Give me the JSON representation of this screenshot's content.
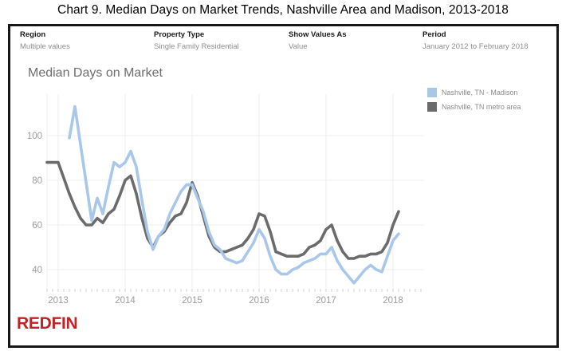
{
  "page_title": "Chart 9. Median Days on Market Trends, Nashville Area and Madison, 2013-2018",
  "filters": [
    {
      "label": "Region",
      "value": "Multiple values"
    },
    {
      "label": "Property Type",
      "value": "Single Family Residential"
    },
    {
      "label": "Show Values As",
      "value": "Value"
    },
    {
      "label": "Period",
      "value": "January 2012 to February 2018"
    }
  ],
  "chart_data": {
    "type": "line",
    "title": "Median Days on Market",
    "xlabel": "",
    "ylabel": "",
    "grid": true,
    "legend_position": "top-right",
    "x_tick_labels": [
      "2013",
      "2014",
      "2015",
      "2016",
      "2017",
      "2018"
    ],
    "y_ticks": [
      40,
      60,
      80,
      100
    ],
    "ylim": [
      31,
      118
    ],
    "x": [
      "2012-11",
      "2012-12",
      "2013-01",
      "2013-02",
      "2013-03",
      "2013-04",
      "2013-05",
      "2013-06",
      "2013-07",
      "2013-08",
      "2013-09",
      "2013-10",
      "2013-11",
      "2013-12",
      "2014-01",
      "2014-02",
      "2014-03",
      "2014-04",
      "2014-05",
      "2014-06",
      "2014-07",
      "2014-08",
      "2014-09",
      "2014-10",
      "2014-11",
      "2014-12",
      "2015-01",
      "2015-02",
      "2015-03",
      "2015-04",
      "2015-05",
      "2015-06",
      "2015-07",
      "2015-08",
      "2015-09",
      "2015-10",
      "2015-11",
      "2015-12",
      "2016-01",
      "2016-02",
      "2016-03",
      "2016-04",
      "2016-05",
      "2016-06",
      "2016-07",
      "2016-08",
      "2016-09",
      "2016-10",
      "2016-11",
      "2016-12",
      "2017-01",
      "2017-02",
      "2017-03",
      "2017-04",
      "2017-05",
      "2017-06",
      "2017-07",
      "2017-08",
      "2017-09",
      "2017-10",
      "2017-11",
      "2017-12",
      "2018-01",
      "2018-02"
    ],
    "series": [
      {
        "name": "Nashville, TN - Madison",
        "color": "#a9c7e9",
        "values": [
          null,
          null,
          null,
          null,
          99,
          113,
          96,
          79,
          62,
          72,
          65,
          77,
          88,
          86,
          88,
          93,
          86,
          71,
          57,
          49,
          55,
          58,
          65,
          70,
          75,
          78,
          78,
          72,
          66,
          57,
          51,
          49,
          45,
          44,
          43,
          44,
          48,
          52,
          58,
          54,
          46,
          40,
          38,
          38,
          40,
          41,
          43,
          44,
          45,
          47,
          47,
          50,
          44,
          40,
          37,
          34,
          37,
          40,
          42,
          40,
          39,
          46,
          53,
          56
        ]
      },
      {
        "name": "Nashville, TN metro area",
        "color": "#6b6b6b",
        "values": [
          88,
          88,
          88,
          81,
          74,
          68,
          63,
          60,
          60,
          63,
          61,
          65,
          67,
          73,
          80,
          82,
          74,
          63,
          54,
          50,
          55,
          57,
          61,
          64,
          65,
          70,
          79,
          73,
          64,
          55,
          50,
          48,
          48,
          49,
          50,
          51,
          54,
          58,
          65,
          64,
          57,
          48,
          47,
          46,
          46,
          46,
          47,
          50,
          51,
          53,
          58,
          60,
          53,
          48,
          45,
          45,
          46,
          46,
          47,
          47,
          48,
          52,
          60,
          66
        ]
      }
    ]
  },
  "logo": {
    "text": "REDFIN",
    "color": "#c42026"
  }
}
